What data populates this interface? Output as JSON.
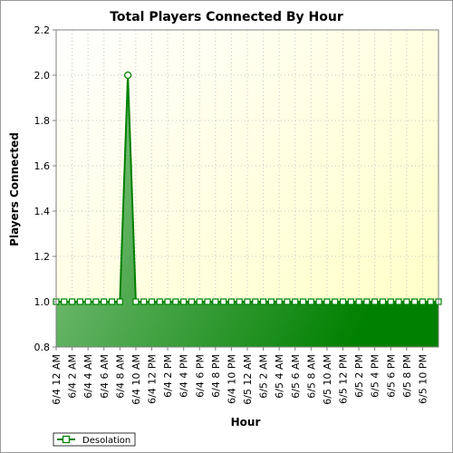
{
  "chart_data": {
    "type": "area",
    "title": "Total Players Connected By Hour",
    "xlabel": "Hour",
    "ylabel": "Players Connected",
    "ylim": [
      0.8,
      2.2
    ],
    "y_ticks": [
      "0.8",
      "1.0",
      "1.2",
      "1.4",
      "1.6",
      "1.8",
      "2.0",
      "2.2"
    ],
    "x_start": "6/4 12 AM",
    "x_step_hours": 1,
    "x_tick_labels": [
      "6/4 12 AM",
      "6/4 2 AM",
      "6/4 4 AM",
      "6/4 6 AM",
      "6/4 8 AM",
      "6/4 10 AM",
      "6/4 12 PM",
      "6/4 2 PM",
      "6/4 4 PM",
      "6/4 6 PM",
      "6/4 8 PM",
      "6/4 10 PM",
      "6/5 12 AM",
      "6/5 2 AM",
      "6/5 4 AM",
      "6/5 6 AM",
      "6/5 8 AM",
      "6/5 10 AM",
      "6/5 12 PM",
      "6/5 2 PM",
      "6/5 4 PM",
      "6/5 6 PM",
      "6/5 8 PM",
      "6/5 10 PM"
    ],
    "grid": true,
    "legend_position": "bottom-left",
    "series": [
      {
        "name": "Desolation",
        "color": "#008000",
        "values": [
          1,
          1,
          1,
          1,
          1,
          1,
          1,
          1,
          1,
          2,
          1,
          1,
          1,
          1,
          1,
          1,
          1,
          1,
          1,
          1,
          1,
          1,
          1,
          1,
          1,
          1,
          1,
          1,
          1,
          1,
          1,
          1,
          1,
          1,
          1,
          1,
          1,
          1,
          1,
          1,
          1,
          1,
          1,
          1,
          1,
          1,
          1,
          1,
          1
        ]
      }
    ]
  }
}
